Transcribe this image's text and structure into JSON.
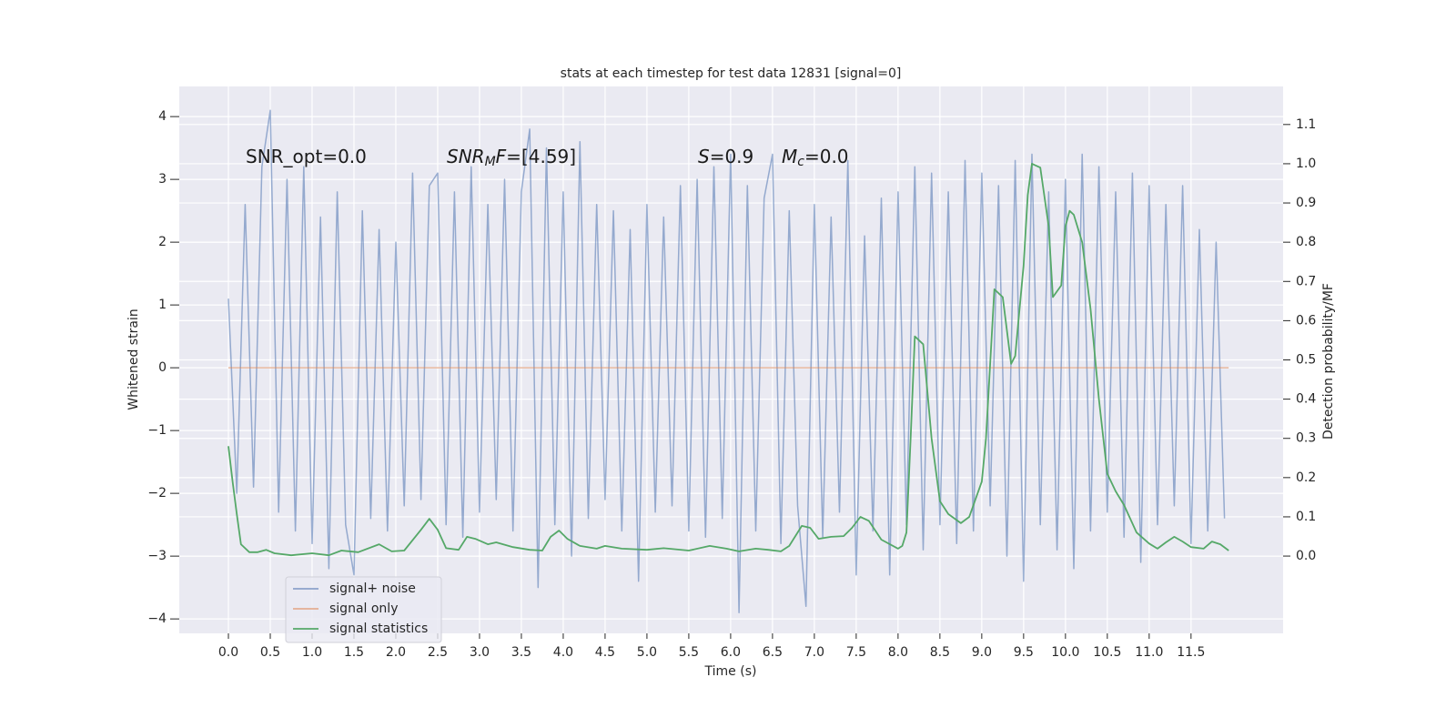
{
  "chart_data": {
    "type": "line",
    "title": "stats at each timestep for test data 12831 [signal=0]",
    "xlabel": "Time (s)",
    "ylabel": "Whitened strain",
    "y2label": "Detection probability/MF",
    "xlim": [
      -0.587,
      12.6
    ],
    "ylim": [
      -4.23,
      4.48
    ],
    "y2lim": [
      -0.197,
      1.197
    ],
    "xticks": [
      {
        "value": 0,
        "label": "0.0"
      },
      0.5,
      {
        "value": 1,
        "label": "1.0"
      },
      1.5,
      {
        "value": 2,
        "label": "2.0"
      },
      2.5,
      {
        "value": 3,
        "label": "3.0"
      },
      3.5,
      {
        "value": 4,
        "label": "4.0"
      },
      4.5,
      {
        "value": 5,
        "label": "5.0"
      },
      5.5,
      {
        "value": 6,
        "label": "6.0"
      },
      6.5,
      {
        "value": 7,
        "label": "7.0"
      },
      7.5,
      {
        "value": 8,
        "label": "8.0"
      },
      8.5,
      {
        "value": 9,
        "label": "9.0"
      },
      9.5,
      {
        "value": 10,
        "label": "10.0"
      },
      10.5,
      {
        "value": 11,
        "label": "11.0"
      },
      11.5
    ],
    "yticks": [
      {
        "value": -4,
        "label": "−4"
      },
      {
        "value": -3,
        "label": "−3"
      },
      {
        "value": -2,
        "label": "−2"
      },
      {
        "value": -1,
        "label": "−1"
      },
      0,
      1,
      2,
      3,
      4
    ],
    "y2ticks": [
      {
        "value": 0,
        "label": "0.0"
      },
      0.1,
      0.2,
      0.3,
      0.4,
      0.5,
      0.6,
      0.7,
      0.8,
      0.9,
      {
        "value": 1,
        "label": "1.0"
      },
      1.1
    ],
    "grid": true,
    "legend": "lower left",
    "annotations": [
      [
        {
          "text": "SNR_opt=0.0"
        }
      ],
      [
        {
          "text": "SNR",
          "style": "italic"
        },
        {
          "text": "M",
          "style": "sub"
        },
        {
          "text": "F",
          "style": "italic"
        },
        {
          "text": "=[4.59]"
        }
      ],
      [
        {
          "text": "S",
          "style": "italic"
        },
        {
          "text": "=0.9"
        }
      ],
      [
        {
          "text": "M",
          "style": "italic"
        },
        {
          "text": "c",
          "style": "sub"
        },
        {
          "text": "=0.0"
        }
      ]
    ],
    "series": [
      {
        "name": "signal+ noise",
        "color": "#4c72b0",
        "axis": "y",
        "x": [
          0.0,
          0.1,
          0.2,
          0.3,
          0.4,
          0.5,
          0.6,
          0.7,
          0.8,
          0.9,
          1.0,
          1.1,
          1.2,
          1.3,
          1.4,
          1.5,
          1.6,
          1.7,
          1.8,
          1.9,
          2.0,
          2.1,
          2.2,
          2.3,
          2.4,
          2.5,
          2.6,
          2.7,
          2.8,
          2.9,
          3.0,
          3.1,
          3.2,
          3.3,
          3.4,
          3.5,
          3.6,
          3.7,
          3.8,
          3.9,
          4.0,
          4.1,
          4.2,
          4.3,
          4.4,
          4.5,
          4.6,
          4.7,
          4.8,
          4.9,
          5.0,
          5.1,
          5.2,
          5.3,
          5.4,
          5.5,
          5.6,
          5.7,
          5.8,
          5.9,
          6.0,
          6.1,
          6.2,
          6.3,
          6.4,
          6.5,
          6.6,
          6.7,
          6.8,
          6.9,
          7.0,
          7.1,
          7.2,
          7.3,
          7.4,
          7.5,
          7.6,
          7.7,
          7.8,
          7.9,
          8.0,
          8.1,
          8.2,
          8.3,
          8.4,
          8.5,
          8.6,
          8.7,
          8.8,
          8.9,
          9.0,
          9.1,
          9.2,
          9.3,
          9.4,
          9.5,
          9.6,
          9.7,
          9.8,
          9.9,
          10.0,
          10.1,
          10.2,
          10.3,
          10.4,
          10.5,
          10.6,
          10.7,
          10.8,
          10.9,
          11.0,
          11.1,
          11.2,
          11.3,
          11.4,
          11.5,
          11.6,
          11.7,
          11.8,
          11.9
        ],
        "values": [
          1.1,
          -2.0,
          2.6,
          -1.9,
          3.2,
          4.1,
          -2.3,
          3.0,
          -2.6,
          3.2,
          -2.8,
          2.4,
          -3.2,
          2.8,
          -2.5,
          -3.3,
          2.5,
          -2.4,
          2.2,
          -2.6,
          2.0,
          -2.2,
          3.1,
          -2.1,
          2.9,
          3.1,
          -2.5,
          2.8,
          -2.7,
          3.2,
          -2.3,
          2.6,
          -2.1,
          3.0,
          -2.6,
          2.8,
          3.8,
          -3.5,
          3.5,
          -2.5,
          2.8,
          -3.0,
          3.6,
          -2.4,
          2.6,
          -2.1,
          2.5,
          -2.6,
          2.2,
          -3.4,
          2.6,
          -2.3,
          2.4,
          -2.2,
          2.9,
          -2.6,
          3.0,
          -2.7,
          3.2,
          -2.4,
          3.4,
          -3.9,
          2.9,
          -2.6,
          2.7,
          3.4,
          -2.8,
          2.5,
          -2.2,
          -3.8,
          2.6,
          -2.7,
          2.4,
          -2.3,
          3.3,
          -3.3,
          2.1,
          -2.6,
          2.7,
          -3.3,
          2.8,
          -2.5,
          3.2,
          -2.9,
          3.1,
          -2.5,
          2.8,
          -2.8,
          3.3,
          -2.6,
          3.1,
          -2.2,
          2.9,
          -3.0,
          3.3,
          -3.4,
          3.4,
          -2.5,
          2.8,
          -2.9,
          3.0,
          -3.2,
          3.4,
          -2.6,
          3.2,
          -2.3,
          2.8,
          -2.7,
          3.1,
          -3.1,
          2.9,
          -2.5,
          2.6,
          -2.2,
          2.9,
          -2.8,
          2.2,
          -2.6,
          2.0,
          -2.4
        ]
      },
      {
        "name": "signal only",
        "color": "#dd8452",
        "axis": "y",
        "x": [
          0.0,
          11.95
        ],
        "values": [
          0,
          0
        ]
      },
      {
        "name": "signal statistics",
        "color": "#55a868",
        "axis": "y2",
        "x": [
          0,
          0.05,
          0.1,
          0.15,
          0.25,
          0.35,
          0.45,
          0.55,
          0.75,
          1.0,
          1.2,
          1.35,
          1.55,
          1.8,
          1.95,
          2.1,
          2.3,
          2.4,
          2.5,
          2.6,
          2.75,
          2.85,
          2.95,
          3.1,
          3.2,
          3.4,
          3.6,
          3.75,
          3.85,
          3.95,
          4.05,
          4.2,
          4.4,
          4.5,
          4.7,
          5.0,
          5.2,
          5.5,
          5.75,
          5.95,
          6.1,
          6.3,
          6.45,
          6.6,
          6.7,
          6.85,
          6.95,
          7.05,
          7.2,
          7.35,
          7.45,
          7.55,
          7.65,
          7.8,
          8.0,
          8.05,
          8.1,
          8.15,
          8.2,
          8.3,
          8.4,
          8.5,
          8.6,
          8.75,
          8.85,
          9.0,
          9.05,
          9.1,
          9.15,
          9.25,
          9.35,
          9.4,
          9.5,
          9.55,
          9.6,
          9.7,
          9.8,
          9.85,
          9.95,
          10.0,
          10.05,
          10.1,
          10.2,
          10.3,
          10.4,
          10.5,
          10.6,
          10.7,
          10.85,
          11.0,
          11.1,
          11.2,
          11.3,
          11.4,
          11.5,
          11.65,
          11.75,
          11.85,
          11.95
        ],
        "values": [
          0.28,
          0.19,
          0.107,
          0.03,
          0.01,
          0.01,
          0.016,
          0.007,
          0.002,
          0.007,
          0.002,
          0.014,
          0.01,
          0.03,
          0.012,
          0.014,
          0.067,
          0.095,
          0.067,
          0.02,
          0.016,
          0.049,
          0.044,
          0.03,
          0.035,
          0.023,
          0.016,
          0.014,
          0.049,
          0.065,
          0.044,
          0.026,
          0.019,
          0.026,
          0.019,
          0.016,
          0.02,
          0.014,
          0.026,
          0.019,
          0.012,
          0.019,
          0.016,
          0.012,
          0.026,
          0.077,
          0.072,
          0.044,
          0.049,
          0.051,
          0.072,
          0.1,
          0.09,
          0.042,
          0.019,
          0.026,
          0.06,
          0.3,
          0.56,
          0.54,
          0.3,
          0.14,
          0.107,
          0.084,
          0.1,
          0.19,
          0.3,
          0.49,
          0.68,
          0.66,
          0.49,
          0.51,
          0.74,
          0.92,
          1.0,
          0.99,
          0.84,
          0.66,
          0.69,
          0.84,
          0.88,
          0.87,
          0.8,
          0.63,
          0.4,
          0.21,
          0.165,
          0.13,
          0.06,
          0.032,
          0.019,
          0.035,
          0.049,
          0.037,
          0.023,
          0.019,
          0.037,
          0.03,
          0.014
        ]
      }
    ]
  }
}
